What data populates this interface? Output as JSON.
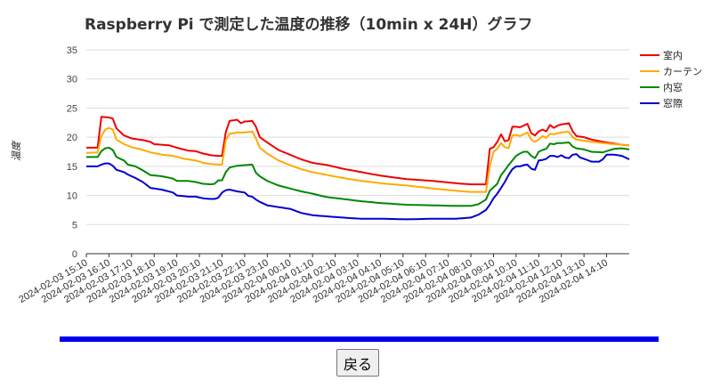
{
  "colors": {
    "divider": "#0000ee",
    "grid": "#dddddd",
    "axis": "#333333"
  },
  "back_button": {
    "label": "戻る"
  },
  "chart_data": {
    "type": "line",
    "title": "Raspberry Pi で測定した温度の推移（10min x 24H）グラフ",
    "ylabel": "温度",
    "xlabel": "",
    "ylim": [
      0,
      35
    ],
    "yticks": [
      0,
      5,
      10,
      15,
      20,
      25,
      30,
      35
    ],
    "grid": true,
    "legend": "right",
    "x_count": 145,
    "xtick_labels": [
      {
        "index": 0,
        "label": "2024-02-03 15:10"
      },
      {
        "index": 6,
        "label": "2024-02-03 16:10"
      },
      {
        "index": 12,
        "label": "2024-02-03 17:10"
      },
      {
        "index": 18,
        "label": "2024-02-03 18:10"
      },
      {
        "index": 24,
        "label": "2024-02-03 19:10"
      },
      {
        "index": 30,
        "label": "2024-02-03 20:10"
      },
      {
        "index": 36,
        "label": "2024-02-03 21:10"
      },
      {
        "index": 42,
        "label": "2024-02-03 22:10"
      },
      {
        "index": 48,
        "label": "2024-02-03 23:10"
      },
      {
        "index": 54,
        "label": "2024-02-04 00:10"
      },
      {
        "index": 60,
        "label": "2024-02-04 01:10"
      },
      {
        "index": 66,
        "label": "2024-02-04 02:10"
      },
      {
        "index": 72,
        "label": "2024-02-04 03:10"
      },
      {
        "index": 78,
        "label": "2024-02-04 04:10"
      },
      {
        "index": 84,
        "label": "2024-02-04 05:10"
      },
      {
        "index": 90,
        "label": "2024-02-04 06:10"
      },
      {
        "index": 96,
        "label": "2024-02-04 07:10"
      },
      {
        "index": 102,
        "label": "2024-02-04 08:10"
      },
      {
        "index": 108,
        "label": "2024-02-04 09:10"
      },
      {
        "index": 114,
        "label": "2024-02-04 10:10"
      },
      {
        "index": 120,
        "label": "2024-02-04 11:10"
      },
      {
        "index": 126,
        "label": "2024-02-04 12:10"
      },
      {
        "index": 132,
        "label": "2024-02-04 13:10"
      },
      {
        "index": 138,
        "label": "2024-02-04 14:10"
      }
    ],
    "series": [
      {
        "name": "室内",
        "color": "#ee0000",
        "keypoints": [
          [
            0,
            18.2
          ],
          [
            3,
            18.2
          ],
          [
            4,
            23.5
          ],
          [
            6,
            23.4
          ],
          [
            7,
            23.2
          ],
          [
            8,
            21.5
          ],
          [
            10,
            20.3
          ],
          [
            12,
            19.8
          ],
          [
            15,
            19.5
          ],
          [
            17,
            19.2
          ],
          [
            18,
            18.8
          ],
          [
            22,
            18.6
          ],
          [
            24,
            18.2
          ],
          [
            27,
            17.7
          ],
          [
            29,
            17.6
          ],
          [
            31,
            17.2
          ],
          [
            33,
            16.9
          ],
          [
            35,
            16.8
          ],
          [
            36,
            16.8
          ],
          [
            37,
            20.9
          ],
          [
            38,
            22.8
          ],
          [
            40,
            23.0
          ],
          [
            41,
            22.4
          ],
          [
            42,
            22.7
          ],
          [
            44,
            22.8
          ],
          [
            45,
            21.8
          ],
          [
            46,
            20.0
          ],
          [
            48,
            19.1
          ],
          [
            51,
            17.8
          ],
          [
            54,
            17.0
          ],
          [
            57,
            16.2
          ],
          [
            60,
            15.6
          ],
          [
            64,
            15.2
          ],
          [
            68,
            14.6
          ],
          [
            73,
            14.0
          ],
          [
            78,
            13.4
          ],
          [
            85,
            12.8
          ],
          [
            92,
            12.5
          ],
          [
            98,
            12.1
          ],
          [
            102,
            11.9
          ],
          [
            106,
            11.9
          ],
          [
            107,
            18.0
          ],
          [
            108,
            18.3
          ],
          [
            109,
            19.2
          ],
          [
            110,
            20.5
          ],
          [
            111,
            19.3
          ],
          [
            112,
            19.5
          ],
          [
            113,
            21.8
          ],
          [
            114,
            21.8
          ],
          [
            115,
            21.7
          ],
          [
            116,
            22.0
          ],
          [
            117,
            22.3
          ],
          [
            118,
            20.7
          ],
          [
            119,
            20.3
          ],
          [
            120,
            21.0
          ],
          [
            121,
            21.3
          ],
          [
            122,
            21.0
          ],
          [
            123,
            22.1
          ],
          [
            124,
            21.6
          ],
          [
            125,
            22.0
          ],
          [
            126,
            22.2
          ],
          [
            127,
            22.3
          ],
          [
            128,
            22.4
          ],
          [
            129,
            21.0
          ],
          [
            130,
            20.2
          ],
          [
            132,
            20.0
          ],
          [
            134,
            19.6
          ],
          [
            137,
            19.2
          ],
          [
            140,
            18.9
          ],
          [
            142,
            18.7
          ],
          [
            144,
            18.6
          ]
        ]
      },
      {
        "name": "カーテン",
        "color": "#ffaa00",
        "keypoints": [
          [
            0,
            17.3
          ],
          [
            3,
            17.4
          ],
          [
            4,
            20.2
          ],
          [
            5,
            21.3
          ],
          [
            6,
            21.6
          ],
          [
            7,
            21.3
          ],
          [
            8,
            19.6
          ],
          [
            10,
            18.8
          ],
          [
            12,
            18.3
          ],
          [
            15,
            17.8
          ],
          [
            17,
            17.4
          ],
          [
            20,
            17.0
          ],
          [
            23,
            16.8
          ],
          [
            26,
            16.3
          ],
          [
            29,
            16.0
          ],
          [
            31,
            15.6
          ],
          [
            33,
            15.4
          ],
          [
            35,
            15.3
          ],
          [
            36,
            15.3
          ],
          [
            37,
            19.5
          ],
          [
            38,
            20.6
          ],
          [
            40,
            20.8
          ],
          [
            42,
            20.8
          ],
          [
            44,
            21.0
          ],
          [
            45,
            19.8
          ],
          [
            46,
            18.2
          ],
          [
            48,
            17.2
          ],
          [
            51,
            16.0
          ],
          [
            54,
            15.2
          ],
          [
            57,
            14.5
          ],
          [
            60,
            14.0
          ],
          [
            64,
            13.5
          ],
          [
            68,
            13.0
          ],
          [
            73,
            12.5
          ],
          [
            78,
            12.1
          ],
          [
            85,
            11.7
          ],
          [
            92,
            11.2
          ],
          [
            98,
            10.8
          ],
          [
            102,
            10.6
          ],
          [
            106,
            10.6
          ],
          [
            107,
            15.0
          ],
          [
            108,
            17.5
          ],
          [
            109,
            18.0
          ],
          [
            110,
            19.0
          ],
          [
            111,
            18.3
          ],
          [
            112,
            18.1
          ],
          [
            113,
            20.3
          ],
          [
            114,
            20.4
          ],
          [
            115,
            20.2
          ],
          [
            116,
            20.5
          ],
          [
            117,
            20.8
          ],
          [
            118,
            19.6
          ],
          [
            119,
            19.2
          ],
          [
            120,
            19.6
          ],
          [
            121,
            20.2
          ],
          [
            122,
            19.9
          ],
          [
            123,
            20.6
          ],
          [
            124,
            20.5
          ],
          [
            125,
            20.7
          ],
          [
            126,
            20.8
          ],
          [
            127,
            20.9
          ],
          [
            128,
            20.9
          ],
          [
            129,
            20.0
          ],
          [
            130,
            19.6
          ],
          [
            132,
            19.4
          ],
          [
            134,
            19.2
          ],
          [
            137,
            19.0
          ],
          [
            140,
            18.8
          ],
          [
            142,
            18.7
          ],
          [
            144,
            18.6
          ]
        ]
      },
      {
        "name": "内窓",
        "color": "#008800",
        "keypoints": [
          [
            0,
            16.6
          ],
          [
            3,
            16.6
          ],
          [
            4,
            17.6
          ],
          [
            5,
            18.1
          ],
          [
            6,
            18.2
          ],
          [
            7,
            17.8
          ],
          [
            8,
            16.6
          ],
          [
            10,
            16.0
          ],
          [
            11,
            15.3
          ],
          [
            13,
            15.0
          ],
          [
            15,
            14.3
          ],
          [
            17,
            13.5
          ],
          [
            20,
            13.3
          ],
          [
            23,
            12.9
          ],
          [
            24,
            12.5
          ],
          [
            27,
            12.5
          ],
          [
            29,
            12.3
          ],
          [
            31,
            12.0
          ],
          [
            33,
            11.9
          ],
          [
            34,
            12.0
          ],
          [
            35,
            12.6
          ],
          [
            36,
            12.6
          ],
          [
            37,
            14.0
          ],
          [
            38,
            14.8
          ],
          [
            40,
            15.1
          ],
          [
            42,
            15.2
          ],
          [
            44,
            15.3
          ],
          [
            45,
            13.9
          ],
          [
            46,
            13.3
          ],
          [
            48,
            12.5
          ],
          [
            51,
            11.7
          ],
          [
            54,
            11.2
          ],
          [
            57,
            10.7
          ],
          [
            60,
            10.3
          ],
          [
            64,
            9.7
          ],
          [
            68,
            9.4
          ],
          [
            73,
            9.0
          ],
          [
            78,
            8.7
          ],
          [
            85,
            8.4
          ],
          [
            92,
            8.3
          ],
          [
            98,
            8.2
          ],
          [
            102,
            8.2
          ],
          [
            104,
            8.5
          ],
          [
            106,
            9.3
          ],
          [
            107,
            10.8
          ],
          [
            109,
            12.0
          ],
          [
            110,
            13.5
          ],
          [
            111,
            14.3
          ],
          [
            112,
            15.2
          ],
          [
            113,
            16.0
          ],
          [
            114,
            16.8
          ],
          [
            115,
            17.2
          ],
          [
            116,
            17.5
          ],
          [
            117,
            17.5
          ],
          [
            118,
            16.8
          ],
          [
            119,
            16.4
          ],
          [
            120,
            17.5
          ],
          [
            121,
            17.8
          ],
          [
            122,
            18.0
          ],
          [
            123,
            18.9
          ],
          [
            124,
            18.8
          ],
          [
            125,
            19.0
          ],
          [
            126,
            19.0
          ],
          [
            128,
            19.1
          ],
          [
            129,
            18.4
          ],
          [
            130,
            18.1
          ],
          [
            132,
            17.9
          ],
          [
            134,
            17.5
          ],
          [
            137,
            17.4
          ],
          [
            140,
            18.0
          ],
          [
            142,
            18.1
          ],
          [
            144,
            17.9
          ]
        ]
      },
      {
        "name": "窓際",
        "color": "#0000cc",
        "keypoints": [
          [
            0,
            15.0
          ],
          [
            3,
            15.0
          ],
          [
            4,
            15.3
          ],
          [
            5,
            15.5
          ],
          [
            6,
            15.5
          ],
          [
            7,
            15.1
          ],
          [
            8,
            14.4
          ],
          [
            10,
            14.0
          ],
          [
            11,
            13.6
          ],
          [
            13,
            13.0
          ],
          [
            15,
            12.3
          ],
          [
            17,
            11.3
          ],
          [
            20,
            11.0
          ],
          [
            23,
            10.5
          ],
          [
            24,
            10.0
          ],
          [
            27,
            9.8
          ],
          [
            29,
            9.8
          ],
          [
            31,
            9.5
          ],
          [
            33,
            9.4
          ],
          [
            34,
            9.4
          ],
          [
            35,
            9.6
          ],
          [
            36,
            10.5
          ],
          [
            37,
            10.9
          ],
          [
            38,
            11.0
          ],
          [
            40,
            10.7
          ],
          [
            42,
            10.5
          ],
          [
            43,
            9.9
          ],
          [
            44,
            9.8
          ],
          [
            45,
            9.3
          ],
          [
            46,
            8.9
          ],
          [
            48,
            8.3
          ],
          [
            51,
            8.0
          ],
          [
            54,
            7.7
          ],
          [
            57,
            7.0
          ],
          [
            60,
            6.6
          ],
          [
            64,
            6.4
          ],
          [
            68,
            6.2
          ],
          [
            73,
            6.0
          ],
          [
            78,
            6.0
          ],
          [
            85,
            5.9
          ],
          [
            92,
            6.0
          ],
          [
            98,
            6.0
          ],
          [
            102,
            6.2
          ],
          [
            104,
            6.7
          ],
          [
            106,
            7.5
          ],
          [
            107,
            8.4
          ],
          [
            108,
            9.5
          ],
          [
            109,
            10.3
          ],
          [
            110,
            11.3
          ],
          [
            111,
            12.3
          ],
          [
            112,
            13.5
          ],
          [
            113,
            14.5
          ],
          [
            114,
            15.0
          ],
          [
            115,
            15.0
          ],
          [
            116,
            15.2
          ],
          [
            117,
            15.3
          ],
          [
            118,
            14.6
          ],
          [
            119,
            14.4
          ],
          [
            120,
            16.0
          ],
          [
            121,
            16.1
          ],
          [
            122,
            16.3
          ],
          [
            123,
            16.8
          ],
          [
            124,
            16.8
          ],
          [
            125,
            16.6
          ],
          [
            126,
            16.9
          ],
          [
            127,
            16.5
          ],
          [
            128,
            16.4
          ],
          [
            129,
            17.0
          ],
          [
            130,
            17.1
          ],
          [
            131,
            16.5
          ],
          [
            132,
            16.3
          ],
          [
            134,
            15.8
          ],
          [
            136,
            15.8
          ],
          [
            137,
            16.2
          ],
          [
            138,
            17.0
          ],
          [
            140,
            17.0
          ],
          [
            142,
            16.8
          ],
          [
            144,
            16.2
          ]
        ]
      }
    ]
  }
}
